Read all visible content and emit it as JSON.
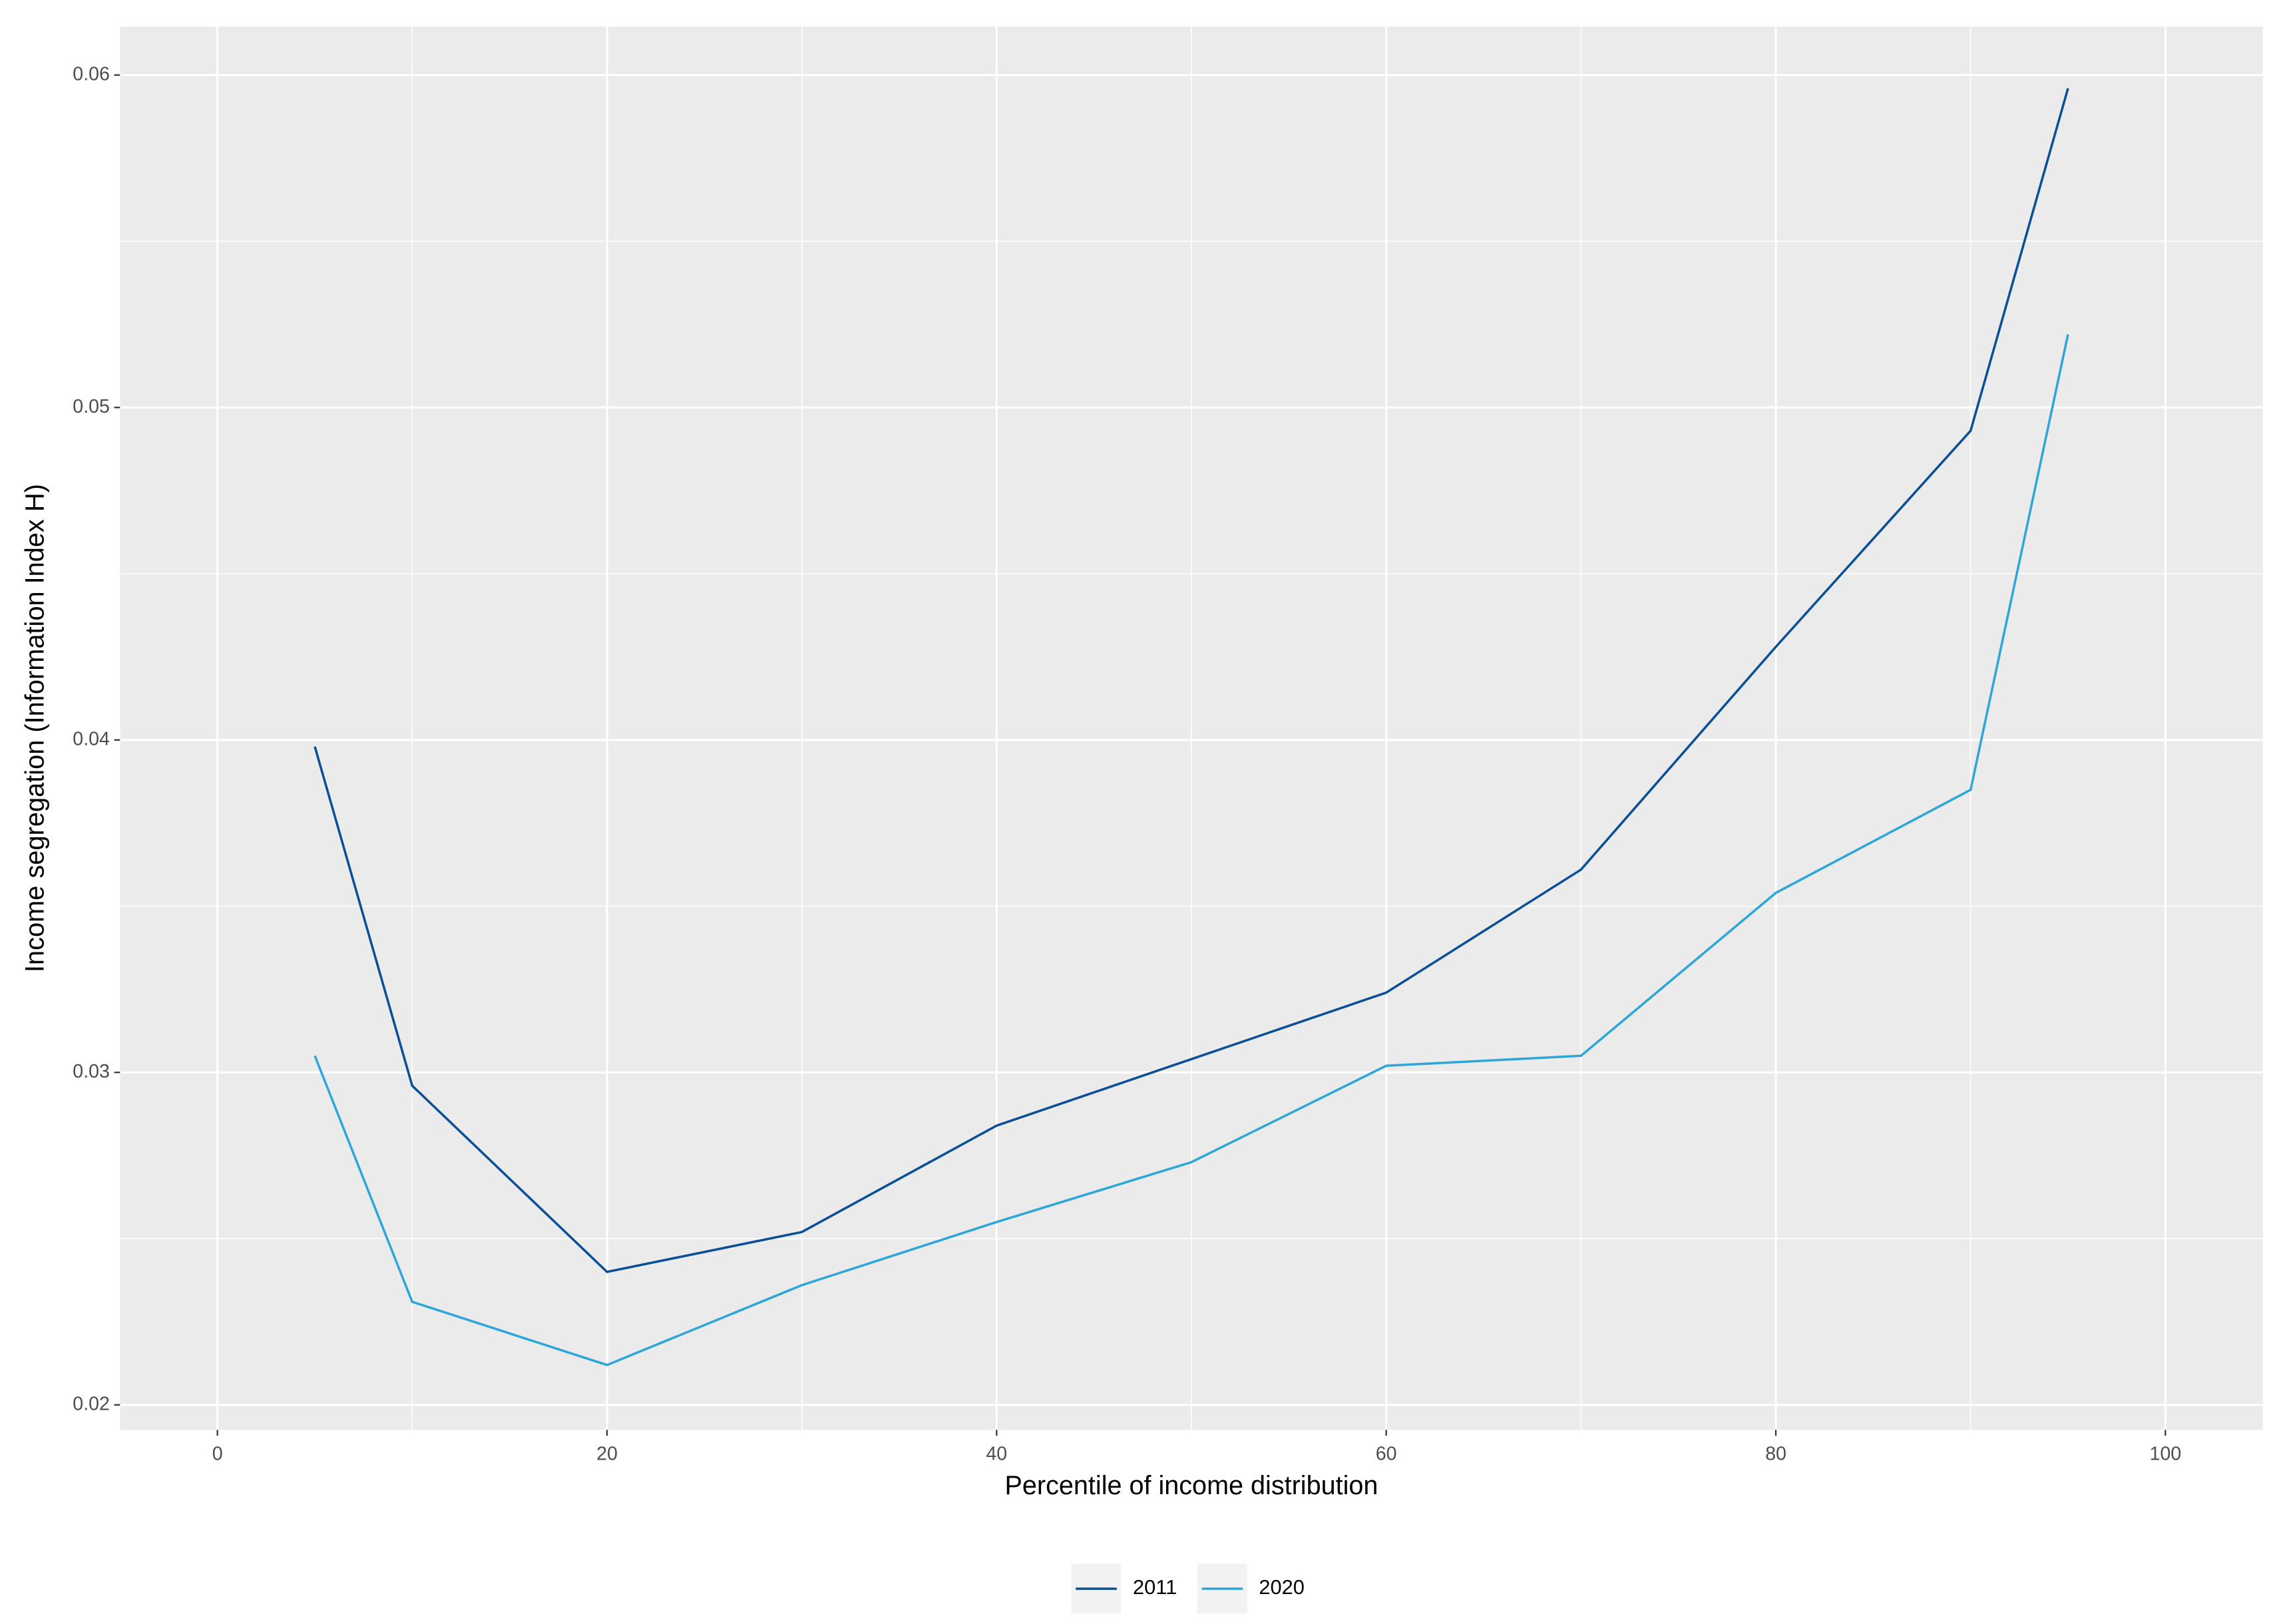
{
  "chart_data": {
    "type": "line",
    "x_label": "Percentile of income distribution",
    "y_label": "Income segregation (Information Index H)",
    "x": [
      5,
      10,
      20,
      30,
      40,
      50,
      60,
      70,
      80,
      90,
      95
    ],
    "series": [
      {
        "name": "2011",
        "color": "#0b4f96",
        "values": [
          0.0398,
          0.0296,
          0.024,
          0.0252,
          0.0284,
          0.0304,
          0.0324,
          0.0361,
          0.0428,
          0.0493,
          0.0596
        ]
      },
      {
        "name": "2020",
        "color": "#2ea7d8",
        "values": [
          0.0305,
          0.0231,
          0.0212,
          0.0236,
          0.0255,
          0.0273,
          0.0302,
          0.0305,
          0.0354,
          0.0385,
          0.0522
        ]
      }
    ],
    "xlim": [
      -5,
      105
    ],
    "ylim": [
      0.01925,
      0.06146
    ],
    "xticks": [
      0,
      20,
      40,
      60,
      80,
      100
    ],
    "yticks": [
      0.02,
      0.03,
      0.04,
      0.05,
      0.06
    ],
    "x_minor_ticks": [
      10,
      30,
      50,
      70,
      90
    ],
    "y_minor_ticks": [
      0.025,
      0.035,
      0.045,
      0.055
    ],
    "grid": true,
    "legend_position": "bottom"
  }
}
